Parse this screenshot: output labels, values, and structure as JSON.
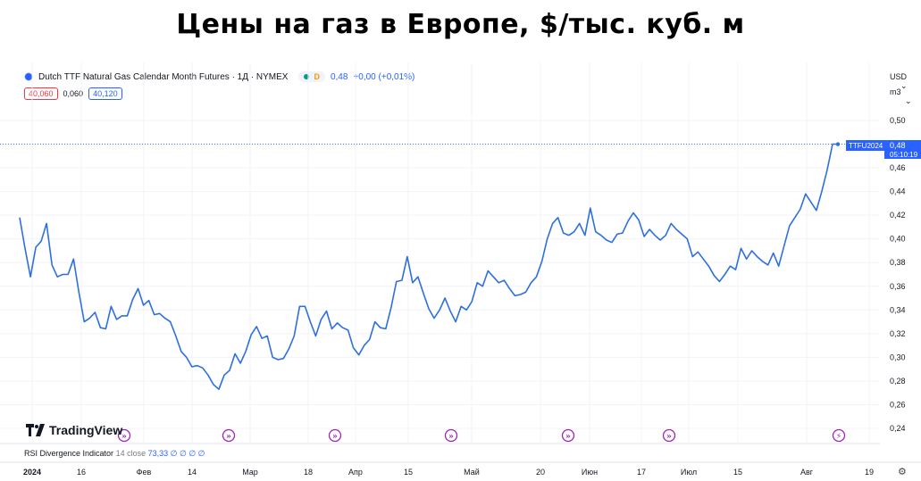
{
  "headline": "Цены на газ в Европе, $/тыс. куб. м",
  "legend": {
    "symbol_title": "Dutch TTF Natural Gas Calendar Month Futures · 1Д · NYMEX",
    "status_letter": "D",
    "price": "0,48",
    "change": "+0,00 (+0,01%)"
  },
  "quotes": {
    "bid": "40,060",
    "spread": "0,060",
    "ask": "40,120"
  },
  "topright": {
    "currency": "USD",
    "unit": "m3"
  },
  "price_tag": {
    "ticker": "TTFU2024",
    "price": "0,48",
    "countdown": "05:10:19"
  },
  "brand": {
    "name": "TradingView"
  },
  "rsi": {
    "label": "RSI Divergence Indicator",
    "params": "14 close",
    "value": "73,33",
    "zeros": "∅ ∅ ∅ ∅"
  },
  "colors": {
    "line": "#2e6fe0",
    "accent": "#2962ff",
    "event": "#9c27b0"
  },
  "chart_data": {
    "type": "line",
    "title": "",
    "xlabel": "",
    "ylabel": "",
    "ylim": [
      0.23,
      0.51
    ],
    "y_ticks": [
      "0,50",
      "0,48",
      "0,46",
      "0,44",
      "0,42",
      "0,40",
      "0,38",
      "0,36",
      "0,34",
      "0,32",
      "0,30",
      "0,28",
      "0,26",
      "0,24"
    ],
    "x_ticks": [
      "2024",
      "16",
      "Фев",
      "14",
      "Мар",
      "18",
      "Апр",
      "15",
      "Май",
      "20",
      "Июн",
      "17",
      "Июл",
      "15",
      "Авг",
      "19"
    ],
    "events": [
      "arrow",
      "arrow",
      "arrow",
      "arrow",
      "arrow",
      "arrow",
      "bolt"
    ],
    "series": [
      {
        "values": [
          0.418,
          0.392,
          0.368,
          0.393,
          0.398,
          0.413,
          0.378,
          0.368,
          0.37,
          0.37,
          0.383,
          0.355,
          0.33,
          0.333,
          0.338,
          0.325,
          0.324,
          0.343,
          0.332,
          0.335,
          0.335,
          0.349,
          0.358,
          0.344,
          0.348,
          0.336,
          0.337,
          0.333,
          0.33,
          0.318,
          0.305,
          0.3,
          0.292,
          0.293,
          0.291,
          0.285,
          0.277,
          0.273,
          0.285,
          0.289,
          0.303,
          0.295,
          0.305,
          0.319,
          0.326,
          0.316,
          0.318,
          0.3,
          0.298,
          0.299,
          0.307,
          0.318,
          0.343,
          0.343,
          0.33,
          0.318,
          0.332,
          0.339,
          0.324,
          0.329,
          0.325,
          0.323,
          0.308,
          0.302,
          0.31,
          0.315,
          0.33,
          0.325,
          0.324,
          0.342,
          0.364,
          0.365,
          0.385,
          0.363,
          0.368,
          0.354,
          0.341,
          0.333,
          0.34,
          0.35,
          0.339,
          0.33,
          0.343,
          0.34,
          0.347,
          0.363,
          0.36,
          0.373,
          0.368,
          0.363,
          0.365,
          0.358,
          0.352,
          0.353,
          0.355,
          0.363,
          0.368,
          0.381,
          0.4,
          0.413,
          0.418,
          0.405,
          0.403,
          0.406,
          0.413,
          0.403,
          0.426,
          0.406,
          0.403,
          0.399,
          0.397,
          0.404,
          0.405,
          0.415,
          0.422,
          0.416,
          0.402,
          0.408,
          0.403,
          0.399,
          0.403,
          0.413,
          0.408,
          0.404,
          0.4,
          0.385,
          0.389,
          0.383,
          0.377,
          0.369,
          0.364,
          0.37,
          0.377,
          0.374,
          0.392,
          0.383,
          0.39,
          0.385,
          0.381,
          0.378,
          0.388,
          0.377,
          0.394,
          0.411,
          0.418,
          0.425,
          0.438,
          0.431,
          0.424,
          0.44,
          0.458,
          0.48,
          0.48
        ]
      }
    ]
  }
}
